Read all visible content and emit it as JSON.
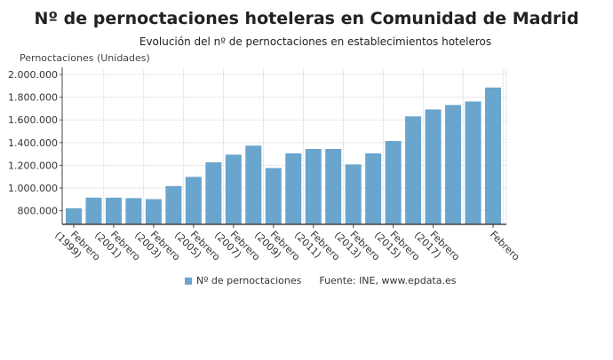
{
  "chart_data": {
    "type": "bar",
    "title": "Nº de pernoctaciones hoteleras en Comunidad de Madrid",
    "subtitle": "Evolución del nº de pernoctaciones en establecimientos hoteleros",
    "ylabel": "Pernoctaciones (Unidades)",
    "xlabel": "",
    "ylim": [
      680000,
      2000000
    ],
    "yticks": [
      800000,
      1000000,
      1200000,
      1400000,
      1600000,
      1800000,
      2000000
    ],
    "ytick_labels": [
      "800.000",
      "1.000.000",
      "1.200.000",
      "1.400.000",
      "1.600.000",
      "1.800.000",
      "2.000.000"
    ],
    "tick_labels": [
      {
        "index": 0,
        "label": "Febrero (1999)"
      },
      {
        "index": 2,
        "label": "Febrero (2001)"
      },
      {
        "index": 4,
        "label": "Febrero (2003)"
      },
      {
        "index": 6,
        "label": "Febrero (2005)"
      },
      {
        "index": 8,
        "label": "Febrero (2007)"
      },
      {
        "index": 10,
        "label": "Febrero (2009)"
      },
      {
        "index": 12,
        "label": "Febrero (2011)"
      },
      {
        "index": 14,
        "label": "Febrero (2013)"
      },
      {
        "index": 16,
        "label": "Febrero (2015)"
      },
      {
        "index": 18,
        "label": "Febrero (2017)"
      },
      {
        "index": 21,
        "label": "Febrero"
      }
    ],
    "grid": true,
    "legend_position": "bottom",
    "series": [
      {
        "name": "Nº de pernoctaciones",
        "color": "#6aa5cd",
        "values": [
          822000,
          915000,
          915000,
          911000,
          902000,
          1017000,
          1098000,
          1226000,
          1294000,
          1373000,
          1176000,
          1305000,
          1344000,
          1344000,
          1208000,
          1305000,
          1414000,
          1631000,
          1692000,
          1731000,
          1762000,
          1885000
        ]
      }
    ]
  },
  "source": "Fuente: INE, www.epdata.es"
}
